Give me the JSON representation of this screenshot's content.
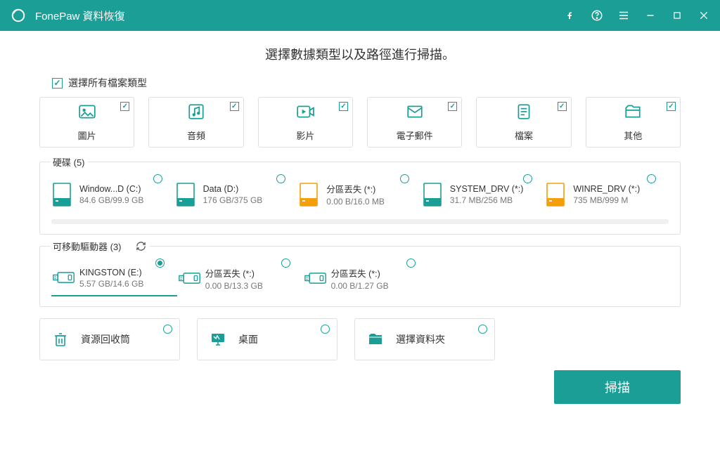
{
  "brand": {
    "accent": "#1a9e96",
    "border": "#e0e0e0",
    "text": "#333333",
    "muted": "#777777",
    "bg": "#ffffff"
  },
  "titlebar": {
    "title": "FonePaw 資料恢復"
  },
  "heading": "選擇數據類型以及路徑進行掃描。",
  "selectAll": {
    "label": "選擇所有檔案類型",
    "checked": true
  },
  "types": [
    {
      "key": "image",
      "label": "圖片",
      "checked": true
    },
    {
      "key": "audio",
      "label": "音頻",
      "checked": true
    },
    {
      "key": "video",
      "label": "影片",
      "checked": true
    },
    {
      "key": "email",
      "label": "電子郵件",
      "checked": true
    },
    {
      "key": "document",
      "label": "檔案",
      "checked": true
    },
    {
      "key": "other",
      "label": "其他",
      "checked": true
    }
  ],
  "disksGroup": {
    "label": "硬碟 (5)"
  },
  "disks": [
    {
      "name": "Window...D (C:)",
      "size": "84.6 GB/99.9 GB",
      "iconColor": "#1a9e96",
      "selected": false
    },
    {
      "name": "Data (D:)",
      "size": "176 GB/375 GB",
      "iconColor": "#1a9e96",
      "selected": false
    },
    {
      "name": "分區丟失 (*:)",
      "size": "0.00  B/16.0 MB",
      "iconColor": "#f59e0b",
      "selected": false
    },
    {
      "name": "SYSTEM_DRV (*:)",
      "size": "31.7 MB/256 MB",
      "iconColor": "#1a9e96",
      "selected": false
    },
    {
      "name": "WINRE_DRV (*:)",
      "size": "735 MB/999 M",
      "iconColor": "#f59e0b",
      "selected": false
    }
  ],
  "removableGroup": {
    "label": "可移動驅動器  (3)"
  },
  "removables": [
    {
      "name": "KINGSTON (E:)",
      "size": "5.57 GB/14.6 GB",
      "selected": true
    },
    {
      "name": "分區丟失 (*:)",
      "size": "0.00  B/13.3 GB",
      "selected": false
    },
    {
      "name": "分區丟失 (*:)",
      "size": "0.00  B/1.27 GB",
      "selected": false
    }
  ],
  "locations": [
    {
      "key": "recycle",
      "label": "資源回收筒"
    },
    {
      "key": "desktop",
      "label": "桌面"
    },
    {
      "key": "folder",
      "label": "選擇資料夾"
    }
  ],
  "scan": {
    "label": "掃描"
  }
}
